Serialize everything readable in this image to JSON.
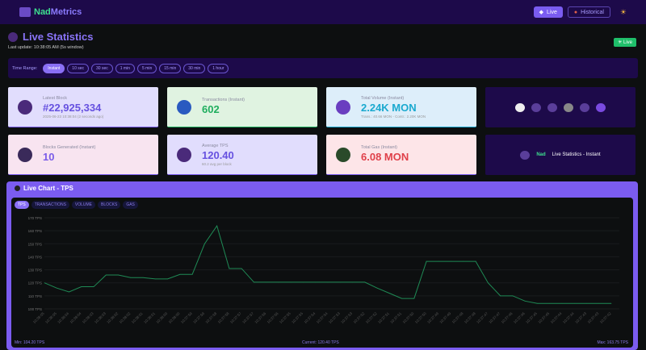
{
  "nav": {
    "brand_a": "Nad",
    "brand_b": "Metrics",
    "live": "Live",
    "historical": "Historical",
    "theme_icon": "sun-icon"
  },
  "header": {
    "title": "Live Statistics",
    "last_update": "Last update: 10:38:05 AM  (5s window)",
    "badge": "Live"
  },
  "time_range": {
    "label": "Time Range:",
    "options": [
      "Instant",
      "10 sec",
      "30 sec",
      "1 min",
      "5 min",
      "15 min",
      "30 min",
      "1 hour"
    ],
    "selected": "Instant"
  },
  "cards": [
    {
      "label": "Latest Block",
      "value": "#22,925,334",
      "sub": "2025-06-23 10:38:04 (2 seconds ago)",
      "bg": "#e1ddfd",
      "color": "#6651e0"
    },
    {
      "label": "Transactions (Instant)",
      "value": "602",
      "sub": "",
      "bg": "#e0f3e1",
      "color": "#1fae5e"
    },
    {
      "label": "Total Volume (Instant)",
      "value": "2.24K MON",
      "sub": "Trans.: 40.66 MON - Contr.: 2.20K MON",
      "bg": "#ddeefa",
      "color": "#1aa9cf"
    },
    {
      "label": "Blocks Generated (Instant)",
      "value": "10",
      "sub": "",
      "bg": "#f8e4f0",
      "color": "#7a5ce8"
    },
    {
      "label": "Average TPS",
      "value": "120.40",
      "sub": "60.2 avg per block",
      "bg": "#e1ddfd",
      "color": "#6651e0"
    },
    {
      "label": "Total Gas (Instant)",
      "value": "6.08 MON",
      "sub": "",
      "bg": "#fde5e8",
      "color": "#e0404a"
    }
  ],
  "promo": {
    "brand": "Nad",
    "text": "Live Statistics - Instant"
  },
  "chart": {
    "title": "Live Chart - TPS",
    "tabs": [
      "TPS",
      "TRANSACTIONS",
      "VOLUME",
      "BLOCKS",
      "GAS"
    ],
    "active_tab": "TPS",
    "min": "Min: 104.20 TPS",
    "current": "Current: 120.40 TPS",
    "max": "Max: 163.75 TPS"
  },
  "chart_data": {
    "type": "line",
    "ylim": [
      100,
      170
    ],
    "yticks": [
      "170 TPS",
      "160 TPS",
      "150 TPS",
      "140 TPS",
      "130 TPS",
      "120 TPS",
      "110 TPS",
      "100 TPS"
    ],
    "line_color": "#1f8a55",
    "x": [
      "10:38:05",
      "10:38:05",
      "10:38:04",
      "10:38:04",
      "10:38:03",
      "10:38:03",
      "10:38:02",
      "10:38:02",
      "10:38:01",
      "10:38:01",
      "10:38:00",
      "10:38:00",
      "10:37:59",
      "10:37:59",
      "10:37:58",
      "10:37:58",
      "10:37:57",
      "10:37:57",
      "10:37:56",
      "10:37:56",
      "10:37:55",
      "10:37:55",
      "10:37:54",
      "10:37:54",
      "10:37:53",
      "10:37:53",
      "10:37:52",
      "10:37:52",
      "10:37:51",
      "10:37:51",
      "10:37:50",
      "10:37:50",
      "10:37:49",
      "10:37:49",
      "10:37:48",
      "10:37:48",
      "10:37:47",
      "10:37:47",
      "10:37:46",
      "10:37:46",
      "10:37:45",
      "10:37:45",
      "10:37:44",
      "10:37:44",
      "10:37:43",
      "10:37:43",
      "10:37:42"
    ],
    "values": [
      120,
      116,
      113,
      117,
      117,
      126,
      126,
      124,
      124,
      123,
      123,
      126.5,
      126.5,
      150,
      163.75,
      131,
      131,
      120.5,
      120.5,
      120.5,
      120.5,
      120.5,
      120.5,
      120.5,
      120.5,
      120.5,
      120.5,
      116,
      112,
      108,
      108,
      136.5,
      136.5,
      136.5,
      136.5,
      136.5,
      120,
      110,
      110,
      106,
      104.2,
      104.2,
      104.2,
      104.2,
      104.2,
      104.2,
      104.2
    ]
  }
}
